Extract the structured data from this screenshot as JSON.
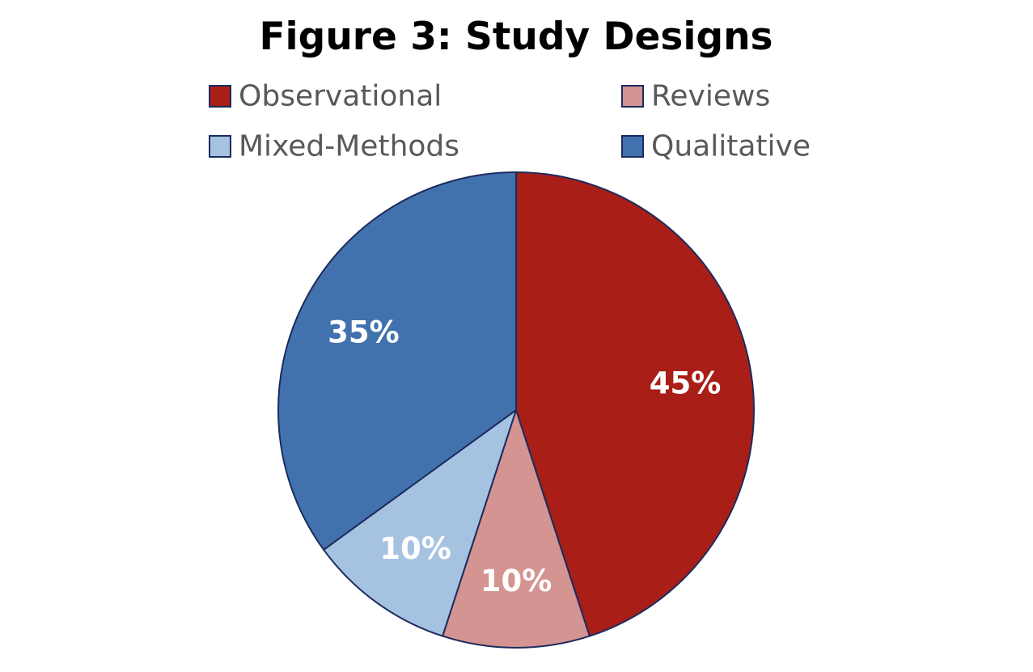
{
  "chart_data": {
    "type": "pie",
    "title": "Figure 3: Study Designs",
    "legend_position": "top",
    "start_angle_deg": 0,
    "direction": "clockwise",
    "slices": [
      {
        "name": "Observational",
        "value": 45,
        "label": "45%",
        "color": "#A91E16"
      },
      {
        "name": "Reviews",
        "value": 10,
        "label": "10%",
        "color": "#D49491"
      },
      {
        "name": "Mixed-Methods",
        "value": 10,
        "label": "10%",
        "color": "#A6C2E1"
      },
      {
        "name": "Qualitative",
        "value": 35,
        "label": "35%",
        "color": "#4272AE"
      }
    ],
    "legend_order": [
      "Observational",
      "Reviews",
      "Mixed-Methods",
      "Qualitative"
    ],
    "slice_border_color": "#1C2B5E"
  }
}
